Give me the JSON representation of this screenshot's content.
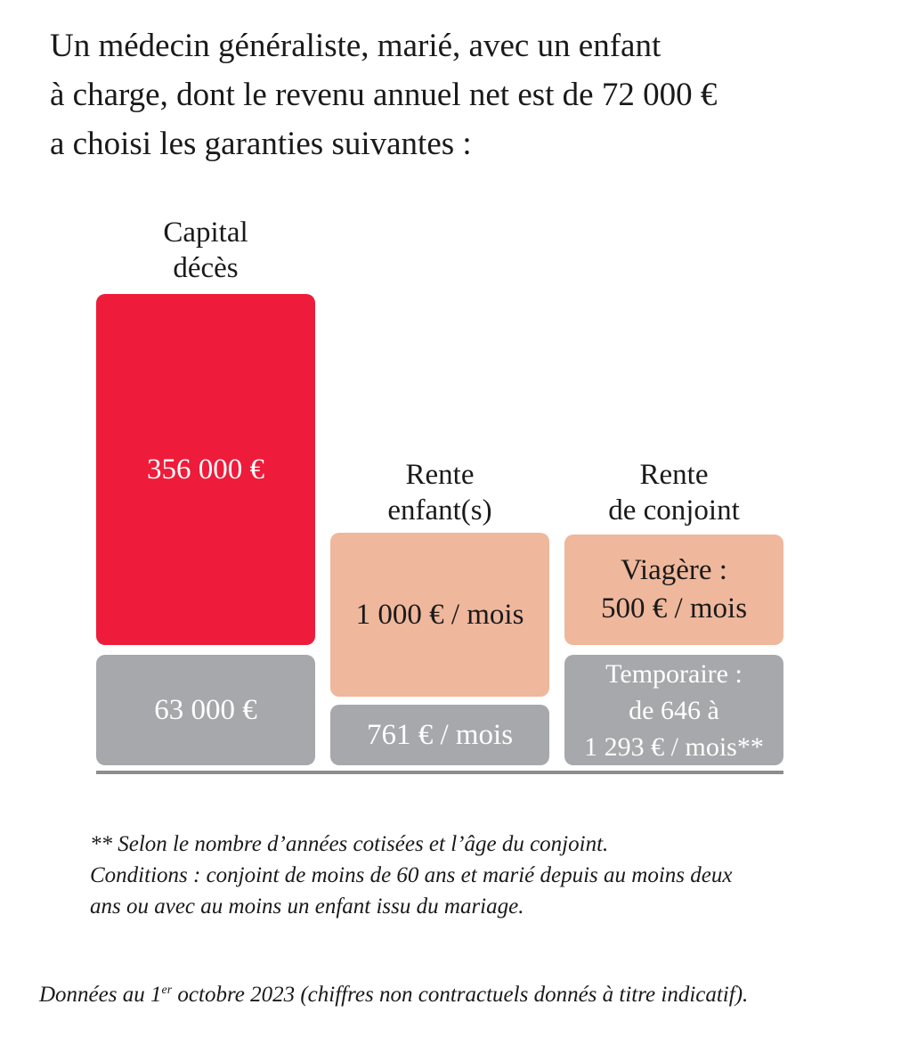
{
  "intro": {
    "line1": "Un médecin généraliste, marié, avec un enfant",
    "line2": "à charge, dont le revenu annuel net est de 72 000 €",
    "line3": "a choisi les garanties suivantes :"
  },
  "chart_data": {
    "type": "bar",
    "title": "",
    "colors": {
      "main_capital": "#ee1c3a",
      "main_rente": "#efb79c",
      "base": "#a7a8ab",
      "axis": "#8c8d90"
    },
    "columns": [
      {
        "label_lines": [
          "Capital",
          "décès"
        ],
        "main": {
          "lines": [
            "356 000 €"
          ],
          "value": 356000,
          "unit": "€"
        },
        "base": {
          "lines": [
            "63 000 €"
          ],
          "value": 63000,
          "unit": "€"
        }
      },
      {
        "label_lines": [
          "Rente",
          "enfant(s)"
        ],
        "main": {
          "lines": [
            "1 000 € / mois"
          ],
          "value": 1000,
          "unit": "€ / mois"
        },
        "base": {
          "lines": [
            "761 € / mois"
          ],
          "value": 761,
          "unit": "€ / mois"
        }
      },
      {
        "label_lines": [
          "Rente",
          "de conjoint"
        ],
        "main": {
          "lines": [
            "Viagère :",
            "500 € / mois"
          ],
          "value": 500,
          "unit": "€ / mois"
        },
        "base": {
          "lines": [
            "Temporaire :",
            "de 646 à",
            "1 293 € / mois**"
          ],
          "value_min": 646,
          "value_max": 1293,
          "unit": "€ / mois"
        }
      }
    ]
  },
  "footnote": {
    "line1": "** Selon le nombre d’années cotisées et l’âge du conjoint.",
    "line2": "Conditions : conjoint de moins de 60 ans et marié depuis au moins deux",
    "line3": "ans ou avec au moins un enfant issu du mariage."
  },
  "source": {
    "prefix": "Données au 1",
    "sup": "er",
    "suffix": " octobre 2023 (chiffres non contractuels donnés à titre indicatif)."
  }
}
